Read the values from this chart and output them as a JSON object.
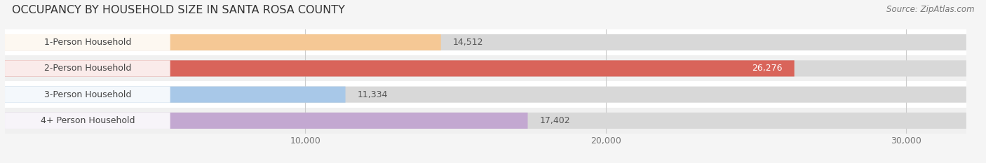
{
  "title": "OCCUPANCY BY HOUSEHOLD SIZE IN SANTA ROSA COUNTY",
  "source": "Source: ZipAtlas.com",
  "categories": [
    "1-Person Household",
    "2-Person Household",
    "3-Person Household",
    "4+ Person Household"
  ],
  "values": [
    14512,
    26276,
    11334,
    17402
  ],
  "bar_colors": [
    "#f5c eighteen95",
    "#d9645a",
    "#a8c8e8",
    "#c3a8d1"
  ],
  "bar_colors_fixed": [
    "#f5c895",
    "#d9645a",
    "#a8c8e8",
    "#c3a8d1"
  ],
  "label_colors": [
    "#555555",
    "#ffffff",
    "#555555",
    "#555555"
  ],
  "xlim": [
    0,
    32000
  ],
  "xticks": [
    10000,
    20000,
    30000
  ],
  "xtick_labels": [
    "10,000",
    "20,000",
    "30,000"
  ],
  "bar_height": 0.62,
  "background_color": "#f0f0f0",
  "bar_bg_color": "#e0e0e0",
  "row_bg_colors": [
    "#ffffff",
    "#f7f7f7"
  ],
  "title_fontsize": 11.5,
  "label_fontsize": 9,
  "value_fontsize": 9,
  "source_fontsize": 8.5
}
